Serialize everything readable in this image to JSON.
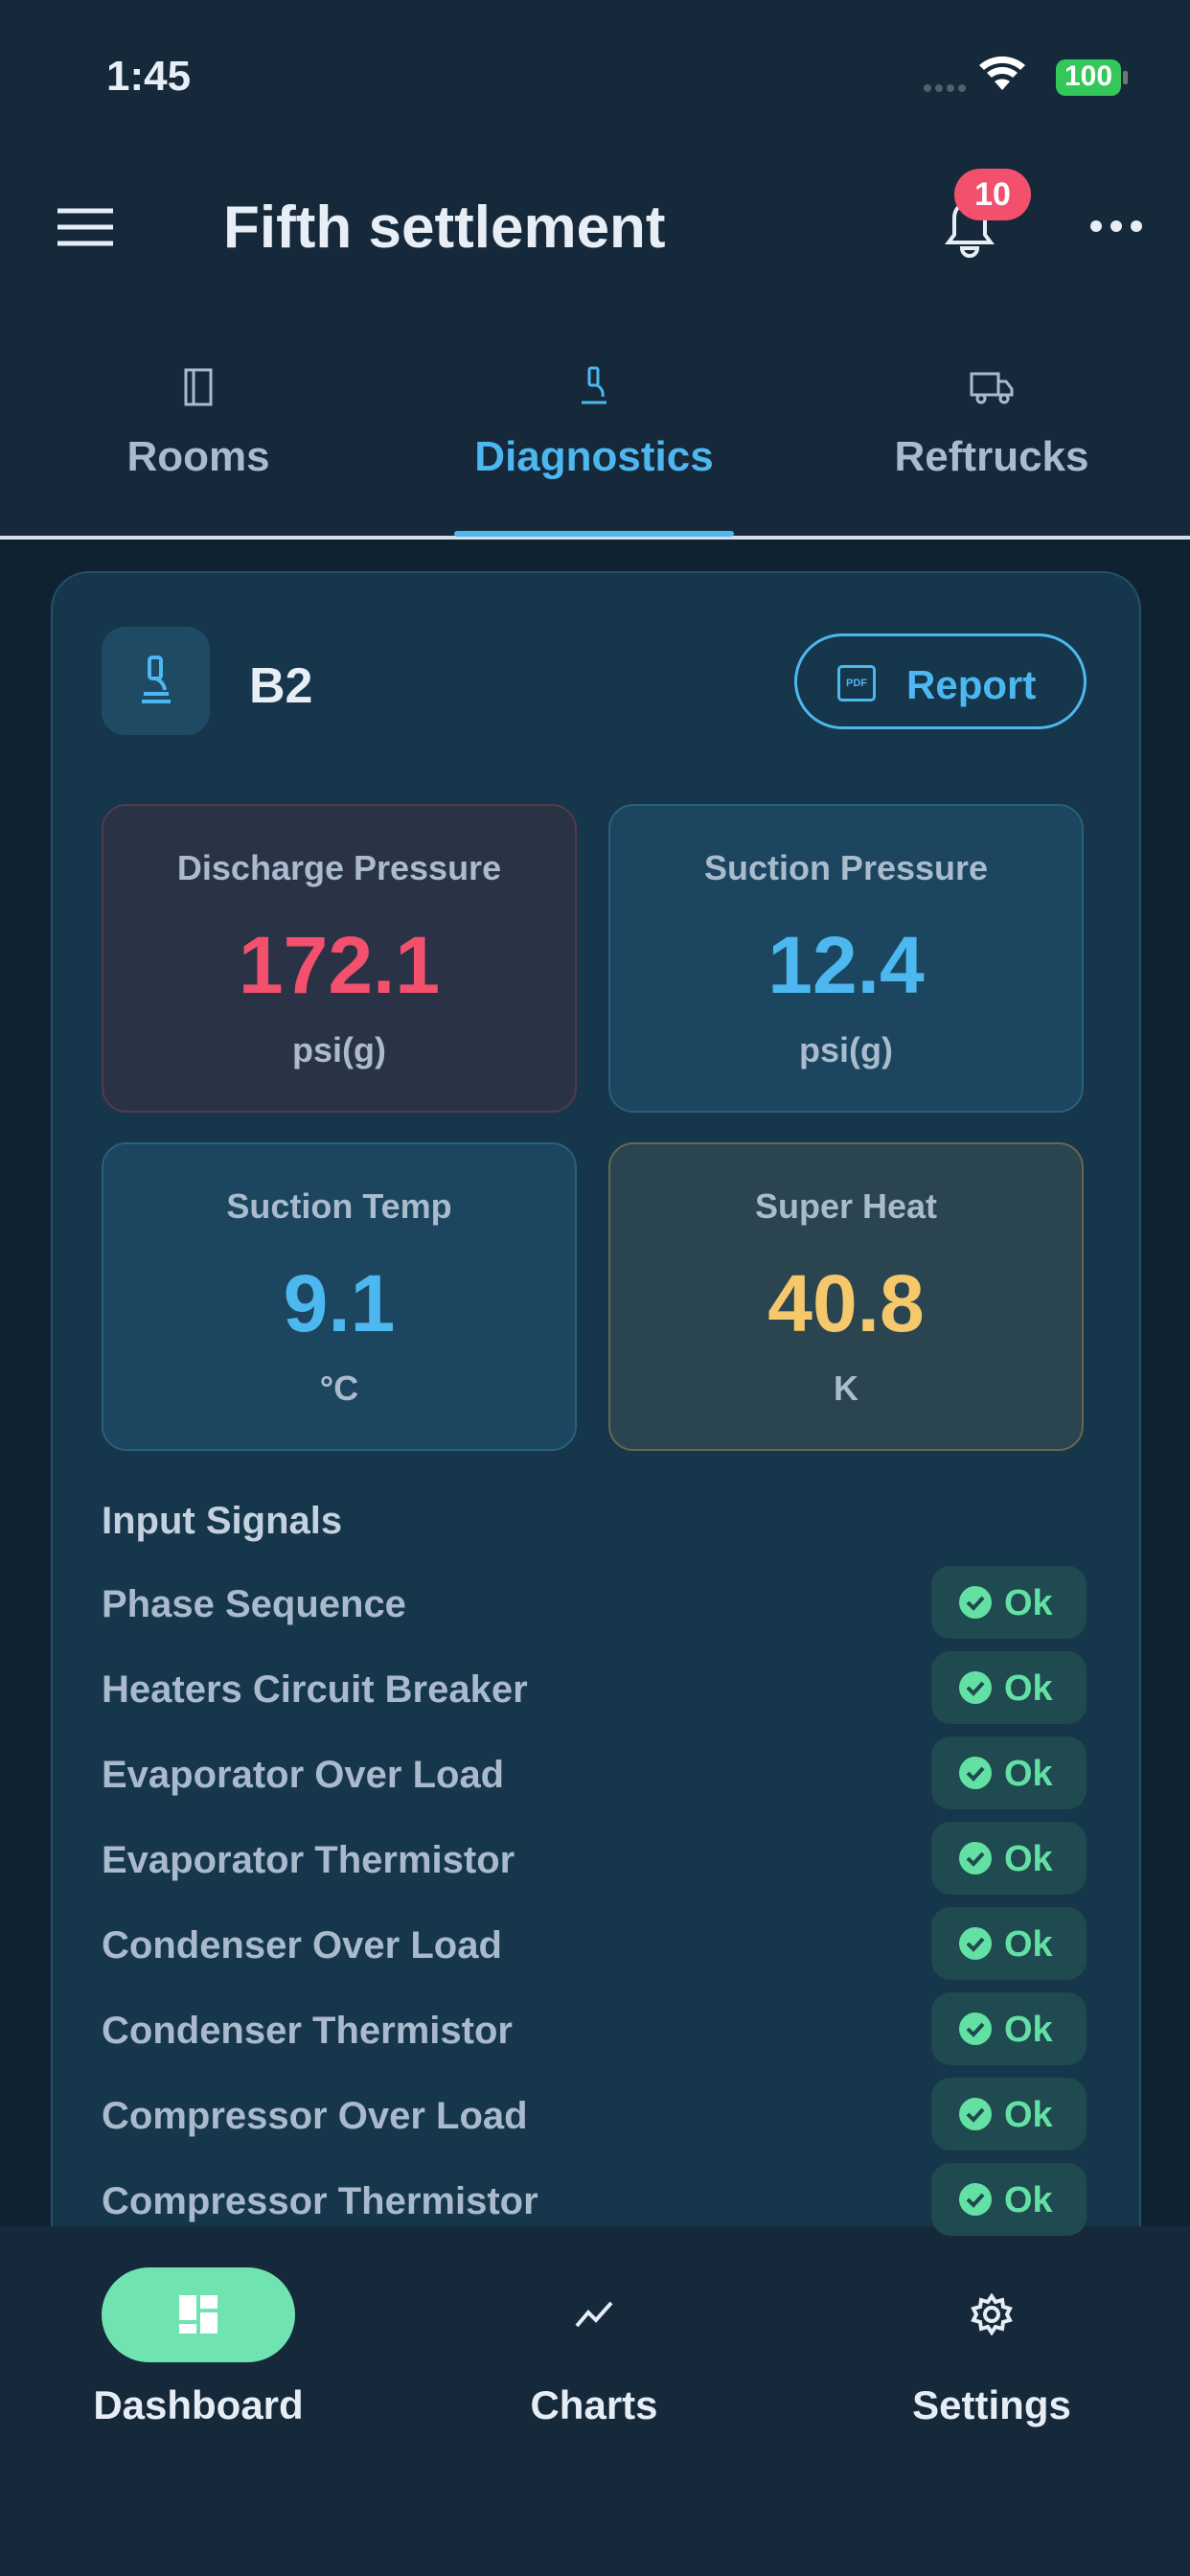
{
  "status_bar": {
    "time": "1:45",
    "battery": "100"
  },
  "header": {
    "title": "Fifth settlement",
    "notification_count": "10"
  },
  "tabs": {
    "items": [
      "Rooms",
      "Diagnostics",
      "Reftrucks"
    ],
    "active": 1
  },
  "card": {
    "unit": "B2",
    "report_icon": "PDF",
    "report_button": "Report",
    "metrics": [
      {
        "label": "Discharge Pressure",
        "value": 172.1,
        "unit": "psi(g)",
        "tone": "red"
      },
      {
        "label": "Suction Pressure",
        "value": 12.4,
        "unit": "psi(g)",
        "tone": "blue"
      },
      {
        "label": "Suction Temp",
        "value": 9.1,
        "unit": "°C",
        "tone": "blue"
      },
      {
        "label": "Super Heat",
        "value": 40.8,
        "unit": "K",
        "tone": "yellow"
      }
    ],
    "signals_title": "Input Signals",
    "signals": [
      {
        "name": "Phase Sequence",
        "status": "Ok"
      },
      {
        "name": "Heaters Circuit Breaker",
        "status": "Ok"
      },
      {
        "name": "Evaporator Over Load",
        "status": "Ok"
      },
      {
        "name": "Evaporator Thermistor",
        "status": "Ok"
      },
      {
        "name": "Condenser Over Load",
        "status": "Ok"
      },
      {
        "name": "Condenser Thermistor",
        "status": "Ok"
      },
      {
        "name": "Compressor Over Load",
        "status": "Ok"
      },
      {
        "name": "Compressor Thermistor",
        "status": "Ok"
      }
    ]
  },
  "bottom_nav": {
    "items": [
      "Dashboard",
      "Charts",
      "Settings"
    ],
    "active": 0
  }
}
